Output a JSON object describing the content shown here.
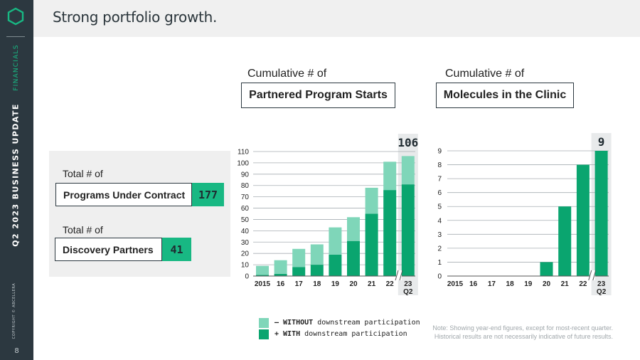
{
  "sidebar": {
    "section": "FINANCIALS",
    "report": "Q2 2023 BUSINESS UPDATE",
    "copyright": "COPYRIGHT © ABCELLERA",
    "page_number": "8"
  },
  "header": {
    "title": "Strong portfolio growth."
  },
  "totals": {
    "programs": {
      "prefix": "Total # of",
      "label": "Programs Under Contract",
      "value": "177"
    },
    "partners": {
      "prefix": "Total # of",
      "label": "Discovery Partners",
      "value": "41"
    }
  },
  "colors": {
    "dark_green": "#0aa56f",
    "light_green": "#7fd6b9",
    "sidebar": "#2c3840",
    "accent": "#18b883"
  },
  "legend": {
    "without_bold": "– WITHOUT",
    "without_rest": " downstream participation",
    "with_bold": "+ WITH",
    "with_rest": " downstream participation"
  },
  "note": {
    "line1": "Note: Showing year-end figures, except for most-recent quarter.",
    "line2": "Historical results are not necessarily indicative of future results."
  },
  "chart_data": [
    {
      "type": "bar",
      "stacked": true,
      "heading_prefix": "Cumulative # of",
      "title": "Partnered Program Starts",
      "categories": [
        "2015",
        "16",
        "17",
        "18",
        "19",
        "20",
        "21",
        "22",
        "23"
      ],
      "category_sublabels": [
        "",
        "",
        "",
        "",
        "",
        "",
        "",
        "",
        "Q2"
      ],
      "series": [
        {
          "name": "+ WITH downstream participation",
          "color": "#0aa56f",
          "values": [
            1,
            2,
            8,
            10,
            19,
            31,
            55,
            76,
            81
          ]
        },
        {
          "name": "– WITHOUT downstream participation",
          "color": "#7fd6b9",
          "values": [
            8,
            12,
            16,
            18,
            24,
            21,
            23,
            25,
            25
          ]
        }
      ],
      "totals": [
        9,
        14,
        24,
        28,
        43,
        52,
        78,
        101,
        106
      ],
      "callout": "106",
      "ylim": [
        0,
        110
      ],
      "yticks": [
        0,
        10,
        20,
        30,
        40,
        50,
        60,
        70,
        80,
        90,
        100,
        110
      ],
      "grid": true,
      "axis_break_before_last": true
    },
    {
      "type": "bar",
      "heading_prefix": "Cumulative # of",
      "title": "Molecules in the Clinic",
      "categories": [
        "2015",
        "16",
        "17",
        "18",
        "19",
        "20",
        "21",
        "22",
        "23"
      ],
      "category_sublabels": [
        "",
        "",
        "",
        "",
        "",
        "",
        "",
        "",
        "Q2"
      ],
      "values": [
        0,
        0,
        0,
        0,
        0,
        1,
        5,
        8,
        9
      ],
      "color": "#0aa56f",
      "callout": "9",
      "ylim": [
        0,
        9
      ],
      "yticks": [
        0,
        1,
        2,
        3,
        4,
        5,
        6,
        7,
        8,
        9
      ],
      "grid": true,
      "axis_break_before_last": true
    }
  ]
}
